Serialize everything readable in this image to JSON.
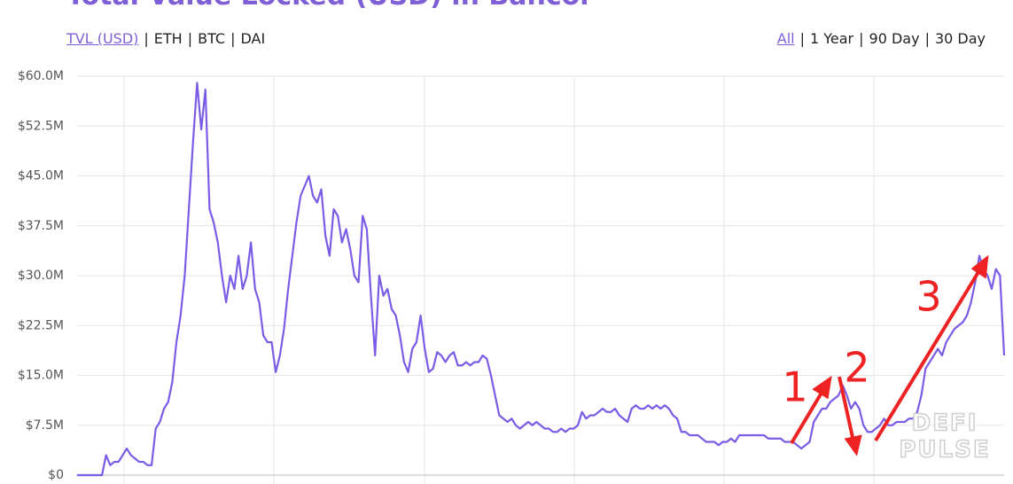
{
  "chart_data": {
    "type": "line",
    "title": "Total Value Locked (USD) in Bancor",
    "series_tabs": [
      "TVL (USD)",
      "ETH",
      "BTC",
      "DAI"
    ],
    "range_tabs": [
      "All",
      "1 Year",
      "90 Day",
      "30 Day"
    ],
    "separator": "|",
    "ylim": [
      0,
      60
    ],
    "yticks": [
      {
        "value": 0,
        "label": "$0"
      },
      {
        "value": 7.5,
        "label": "$7.5M"
      },
      {
        "value": 15,
        "label": "$15.0M"
      },
      {
        "value": 22.5,
        "label": "$22.5M"
      },
      {
        "value": 30,
        "label": "$30.0M"
      },
      {
        "value": 37.5,
        "label": "$37.5M"
      },
      {
        "value": 45,
        "label": "$45.0M"
      },
      {
        "value": 52.5,
        "label": "$52.5M"
      },
      {
        "value": 60,
        "label": "$60.0M"
      }
    ],
    "grid": true,
    "series": [
      {
        "color": "#7b5ce6",
        "values": [
          0,
          0,
          0,
          0,
          0,
          0,
          0,
          3,
          1.5,
          2,
          2,
          3,
          4,
          3,
          2.5,
          2,
          2,
          1.5,
          1.5,
          7,
          8,
          10,
          11,
          14,
          20,
          24,
          30,
          40,
          50,
          59,
          52,
          58,
          40,
          38,
          35,
          30,
          26,
          30,
          28,
          33,
          28,
          30,
          35,
          28,
          26,
          21,
          20,
          20,
          15.5,
          18,
          22,
          28,
          33,
          38,
          42,
          43.5,
          45,
          42,
          41,
          43,
          36,
          33,
          40,
          39,
          35,
          37,
          34,
          30,
          29,
          39,
          37,
          27,
          18,
          30,
          27,
          28,
          25,
          24,
          21,
          17,
          15.5,
          19,
          20,
          24,
          19,
          15.5,
          16,
          18.5,
          18,
          17,
          18,
          18.5,
          16.5,
          16.5,
          17,
          16.5,
          17,
          17,
          18,
          17.5,
          15,
          12,
          9,
          8.5,
          8,
          8.5,
          7.5,
          7,
          7.5,
          8,
          7.5,
          8,
          7.5,
          7,
          7,
          6.5,
          6.5,
          7,
          6.5,
          7,
          7,
          7.5,
          9.5,
          8.5,
          9,
          9,
          9.5,
          10,
          9.5,
          9.5,
          10,
          9,
          8.5,
          8,
          10,
          10.5,
          10,
          10,
          10.5,
          10,
          10.5,
          10,
          10.5,
          10,
          9,
          8.5,
          6.5,
          6.5,
          6,
          6,
          6,
          5.5,
          5,
          5,
          5,
          4.5,
          5,
          5,
          5.5,
          5,
          6,
          6,
          6,
          6,
          6,
          6,
          6,
          5.5,
          5.5,
          5.5,
          5.5,
          5,
          5,
          5,
          4.5,
          4,
          4.5,
          5,
          8,
          9,
          10,
          10,
          11,
          11.5,
          12,
          13.5,
          12,
          10,
          11,
          10,
          7.5,
          6.5,
          6.5,
          7,
          7.5,
          8.5,
          7.5,
          7.5,
          8,
          8,
          8,
          8.5,
          8.5,
          9.5,
          12,
          16,
          17,
          18,
          19,
          18,
          20,
          21,
          22,
          22.5,
          23,
          24,
          26,
          29,
          33,
          31,
          30,
          28,
          31,
          30,
          18
        ]
      }
    ],
    "annotations": [
      "1",
      "2",
      "3"
    ],
    "watermark": [
      "DEFI",
      "PULSE"
    ]
  }
}
